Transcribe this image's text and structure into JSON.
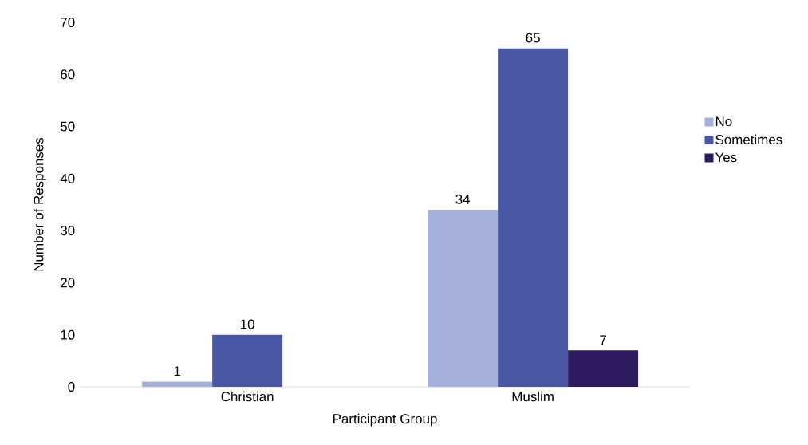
{
  "chart_data": {
    "type": "bar",
    "xlabel": "Participant Group",
    "ylabel": "Number of Responses",
    "categories": [
      "Christian",
      "Muslim"
    ],
    "series": [
      {
        "name": "No",
        "color": "#a5b1dc",
        "values": [
          1,
          34
        ]
      },
      {
        "name": "Sometimes",
        "color": "#4a57a5",
        "values": [
          10,
          65
        ]
      },
      {
        "name": "Yes",
        "color": "#2e1a5e",
        "values": [
          null,
          7
        ]
      }
    ],
    "ylim": [
      0,
      70
    ],
    "yticks": [
      0,
      10,
      20,
      30,
      40,
      50,
      60,
      70
    ],
    "data_labels": true,
    "legend": "right",
    "grid": false
  }
}
